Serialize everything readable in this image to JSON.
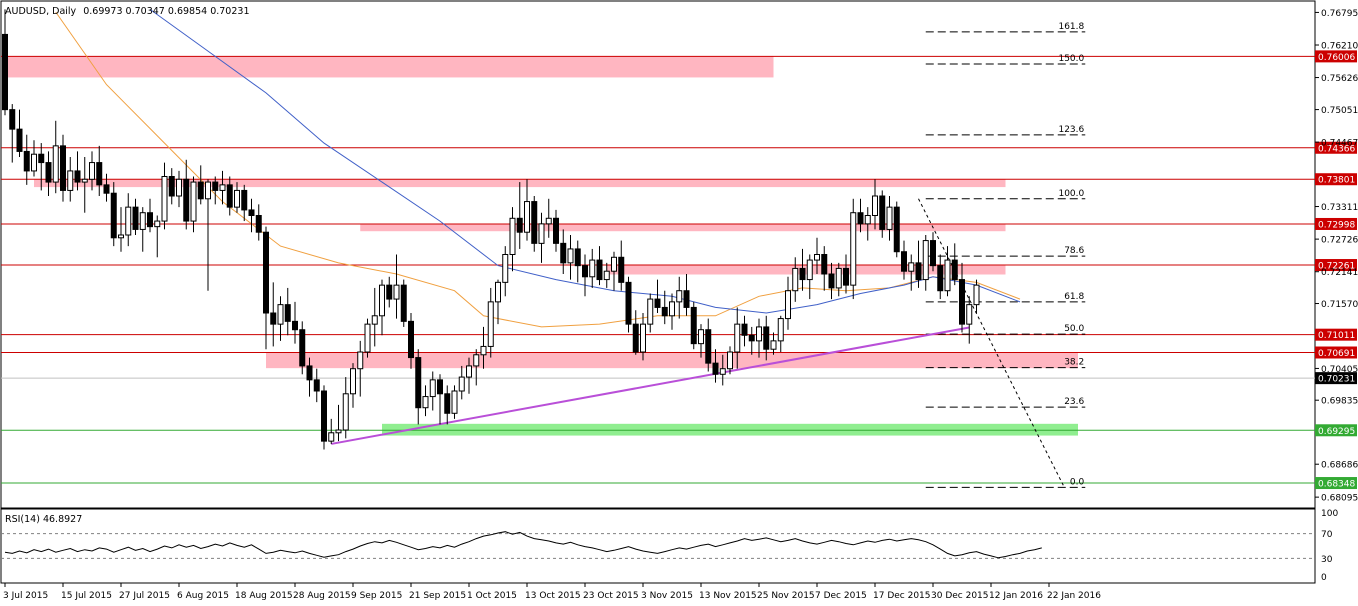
{
  "chart_data": {
    "type": "candlestick",
    "title": {
      "symbol": "AUDUSD",
      "timeframe": "Daily",
      "ohlc_readout": [
        "0.69973",
        "0.70347",
        "0.69854",
        "0.70231"
      ]
    },
    "price_axis": {
      "range": [
        0.679,
        0.77
      ],
      "ticks": [
        "0.76795",
        "0.76210",
        "0.75626",
        "0.75051",
        "0.74467",
        "0.73311",
        "0.72726",
        "0.72141",
        "0.71570",
        "0.70405",
        "0.69835",
        "0.68686",
        "0.68095"
      ]
    },
    "date_axis": {
      "labels": [
        "3 Jul 2015",
        "15 Jul 2015",
        "27 Jul 2015",
        "6 Aug 2015",
        "18 Aug 2015",
        "28 Aug 2015",
        "9 Sep 2015",
        "21 Sep 2015",
        "1 Oct 2015",
        "13 Oct 2015",
        "23 Oct 2015",
        "3 Nov 2015",
        "13 Nov 2015",
        "25 Nov 2015",
        "7 Dec 2015",
        "17 Dec 2015",
        "30 Dec 2015",
        "12 Jan 2016",
        "22 Jan 2016"
      ],
      "label_bar_index": [
        0,
        8,
        16,
        24,
        32,
        40,
        48,
        56,
        64,
        72,
        80,
        88,
        96,
        104,
        112,
        120,
        128,
        136,
        144
      ]
    },
    "horizontal_levels": [
      {
        "price": 0.76006,
        "label": "0.76006",
        "color": "#cc0000"
      },
      {
        "price": 0.74366,
        "label": "0.74366",
        "color": "#cc0000"
      },
      {
        "price": 0.73801,
        "label": "0.73801",
        "color": "#cc0000"
      },
      {
        "price": 0.72998,
        "label": "0.72998",
        "color": "#cc0000"
      },
      {
        "price": 0.72261,
        "label": "0.72261",
        "color": "#cc0000"
      },
      {
        "price": 0.71011,
        "label": "0.71011",
        "color": "#cc0000"
      },
      {
        "price": 0.70691,
        "label": "0.70691",
        "color": "#cc0000"
      },
      {
        "price": 0.70231,
        "label": "0.70231",
        "color": "#000000"
      },
      {
        "price": 0.69295,
        "label": "0.69295",
        "color": "#33aa33"
      },
      {
        "price": 0.68348,
        "label": "0.68348",
        "color": "#33aa33"
      }
    ],
    "zones": [
      {
        "from_bar": 0,
        "to_bar": 106,
        "top": 0.76004,
        "bottom": 0.75628,
        "color": "#ffb6c1"
      },
      {
        "from_bar": 4,
        "to_bar": 138,
        "top": 0.73803,
        "bottom": 0.7366,
        "color": "#ffb6c1"
      },
      {
        "from_bar": 49,
        "to_bar": 138,
        "top": 0.73,
        "bottom": 0.72868,
        "color": "#ffb6c1"
      },
      {
        "from_bar": 83,
        "to_bar": 138,
        "top": 0.72267,
        "bottom": 0.72091,
        "color": "#ffb6c1"
      },
      {
        "from_bar": 36,
        "to_bar": 148,
        "top": 0.70694,
        "bottom": 0.7041,
        "color": "#ffb6c1"
      },
      {
        "from_bar": 52,
        "to_bar": 148,
        "top": 0.69411,
        "bottom": 0.692,
        "color": "#90ee90"
      }
    ],
    "fibonacci": {
      "from_bar": 127,
      "to_bar": 149,
      "levels": [
        {
          "label": "161.8",
          "price": 0.76446
        },
        {
          "label": "150.0",
          "price": 0.7587
        },
        {
          "label": "123.6",
          "price": 0.74596
        },
        {
          "label": "100.0",
          "price": 0.7345
        },
        {
          "label": "78.6",
          "price": 0.7242
        },
        {
          "label": "61.8",
          "price": 0.716
        },
        {
          "label": "50.0",
          "price": 0.7102
        },
        {
          "label": "38.2",
          "price": 0.7042
        },
        {
          "label": "23.6",
          "price": 0.6971
        },
        {
          "label": "0.0",
          "price": 0.6827
        }
      ]
    },
    "trendlines": [
      {
        "from": [
          45,
          0.6905
        ],
        "to": [
          133,
          0.7114
        ],
        "color": "#b94fd8",
        "style": "solid"
      },
      {
        "from": [
          126,
          0.7345
        ],
        "to": [
          146,
          0.683
        ],
        "color": "#000000",
        "style": "dotted"
      }
    ],
    "moving_averages": [
      {
        "color": "#f0a040",
        "points": [
          [
            7,
            0.768
          ],
          [
            14,
            0.755
          ],
          [
            22,
            0.7445
          ],
          [
            30,
            0.734
          ],
          [
            38,
            0.726
          ],
          [
            46,
            0.723
          ],
          [
            54,
            0.721
          ],
          [
            62,
            0.718
          ],
          [
            66,
            0.7135
          ],
          [
            74,
            0.7115
          ],
          [
            82,
            0.712
          ],
          [
            90,
            0.7135
          ],
          [
            98,
            0.7135
          ],
          [
            104,
            0.717
          ],
          [
            110,
            0.7185
          ],
          [
            116,
            0.718
          ],
          [
            122,
            0.7185
          ],
          [
            128,
            0.7205
          ],
          [
            134,
            0.7195
          ],
          [
            140,
            0.7165
          ]
        ]
      },
      {
        "color": "#4060c8",
        "points": [
          [
            20,
            0.7685
          ],
          [
            28,
            0.761
          ],
          [
            36,
            0.7535
          ],
          [
            44,
            0.7445
          ],
          [
            52,
            0.7375
          ],
          [
            60,
            0.7305
          ],
          [
            68,
            0.7225
          ],
          [
            76,
            0.72
          ],
          [
            84,
            0.718
          ],
          [
            92,
            0.717
          ],
          [
            98,
            0.715
          ],
          [
            105,
            0.714
          ],
          [
            112,
            0.7155
          ],
          [
            118,
            0.7175
          ],
          [
            124,
            0.719
          ],
          [
            128,
            0.7205
          ],
          [
            134,
            0.719
          ],
          [
            140,
            0.716
          ]
        ]
      }
    ],
    "candles": [
      [
        0.764,
        0.7685,
        0.7495,
        0.7505
      ],
      [
        0.7505,
        0.7515,
        0.741,
        0.747
      ],
      [
        0.747,
        0.7505,
        0.742,
        0.743
      ],
      [
        0.743,
        0.746,
        0.737,
        0.7395
      ],
      [
        0.7395,
        0.745,
        0.7385,
        0.7425
      ],
      [
        0.7425,
        0.7445,
        0.736,
        0.741
      ],
      [
        0.741,
        0.743,
        0.735,
        0.7375
      ],
      [
        0.7375,
        0.7485,
        0.7355,
        0.744
      ],
      [
        0.744,
        0.746,
        0.734,
        0.736
      ],
      [
        0.736,
        0.742,
        0.734,
        0.7395
      ],
      [
        0.7395,
        0.743,
        0.736,
        0.7375
      ],
      [
        0.7375,
        0.742,
        0.732,
        0.738
      ],
      [
        0.738,
        0.743,
        0.736,
        0.741
      ],
      [
        0.741,
        0.744,
        0.735,
        0.737
      ],
      [
        0.737,
        0.739,
        0.734,
        0.7355
      ],
      [
        0.7355,
        0.7375,
        0.726,
        0.7275
      ],
      [
        0.7275,
        0.733,
        0.725,
        0.728
      ],
      [
        0.728,
        0.7355,
        0.726,
        0.733
      ],
      [
        0.733,
        0.7345,
        0.728,
        0.729
      ],
      [
        0.729,
        0.733,
        0.725,
        0.732
      ],
      [
        0.732,
        0.7345,
        0.7285,
        0.7295
      ],
      [
        0.7295,
        0.7315,
        0.724,
        0.7305
      ],
      [
        0.7305,
        0.741,
        0.729,
        0.7385
      ],
      [
        0.7385,
        0.74,
        0.7335,
        0.735
      ],
      [
        0.735,
        0.7395,
        0.733,
        0.738
      ],
      [
        0.738,
        0.7415,
        0.729,
        0.7305
      ],
      [
        0.7305,
        0.7385,
        0.7285,
        0.7375
      ],
      [
        0.7375,
        0.7405,
        0.7335,
        0.7345
      ],
      [
        0.7345,
        0.738,
        0.718,
        0.7375
      ],
      [
        0.7375,
        0.7385,
        0.7335,
        0.736
      ],
      [
        0.736,
        0.7395,
        0.7335,
        0.737
      ],
      [
        0.737,
        0.7385,
        0.7315,
        0.733
      ],
      [
        0.733,
        0.7375,
        0.732,
        0.736
      ],
      [
        0.736,
        0.737,
        0.7305,
        0.7325
      ],
      [
        0.7325,
        0.7345,
        0.7285,
        0.7315
      ],
      [
        0.7315,
        0.7335,
        0.727,
        0.7285
      ],
      [
        0.7285,
        0.7295,
        0.7075,
        0.714
      ],
      [
        0.714,
        0.7195,
        0.708,
        0.712
      ],
      [
        0.712,
        0.717,
        0.709,
        0.7155
      ],
      [
        0.7155,
        0.7185,
        0.71,
        0.7125
      ],
      [
        0.7125,
        0.716,
        0.7085,
        0.711
      ],
      [
        0.711,
        0.7125,
        0.703,
        0.7045
      ],
      [
        0.7045,
        0.706,
        0.699,
        0.702
      ],
      [
        0.702,
        0.704,
        0.698,
        0.7
      ],
      [
        0.7,
        0.701,
        0.6895,
        0.691
      ],
      [
        0.691,
        0.695,
        0.6905,
        0.6925
      ],
      [
        0.6925,
        0.6975,
        0.691,
        0.693
      ],
      [
        0.693,
        0.7025,
        0.6915,
        0.6995
      ],
      [
        0.6995,
        0.705,
        0.697,
        0.704
      ],
      [
        0.704,
        0.709,
        0.699,
        0.707
      ],
      [
        0.707,
        0.713,
        0.706,
        0.712
      ],
      [
        0.712,
        0.7185,
        0.708,
        0.7135
      ],
      [
        0.7135,
        0.72,
        0.71,
        0.719
      ],
      [
        0.719,
        0.7205,
        0.715,
        0.7165
      ],
      [
        0.7165,
        0.7245,
        0.713,
        0.719
      ],
      [
        0.719,
        0.72,
        0.7115,
        0.7125
      ],
      [
        0.7125,
        0.714,
        0.704,
        0.706
      ],
      [
        0.706,
        0.7075,
        0.694,
        0.697
      ],
      [
        0.697,
        0.701,
        0.6955,
        0.699
      ],
      [
        0.699,
        0.7035,
        0.6965,
        0.702
      ],
      [
        0.702,
        0.703,
        0.694,
        0.6995
      ],
      [
        0.6995,
        0.701,
        0.694,
        0.696
      ],
      [
        0.696,
        0.701,
        0.695,
        0.7
      ],
      [
        0.7,
        0.7045,
        0.6985,
        0.7025
      ],
      [
        0.7025,
        0.706,
        0.6995,
        0.7045
      ],
      [
        0.7045,
        0.7075,
        0.701,
        0.7065
      ],
      [
        0.7065,
        0.7115,
        0.704,
        0.708
      ],
      [
        0.708,
        0.7185,
        0.706,
        0.716
      ],
      [
        0.716,
        0.72,
        0.712,
        0.7195
      ],
      [
        0.7195,
        0.726,
        0.717,
        0.7245
      ],
      [
        0.7245,
        0.733,
        0.7215,
        0.731
      ],
      [
        0.731,
        0.7375,
        0.7255,
        0.7285
      ],
      [
        0.7285,
        0.738,
        0.727,
        0.734
      ],
      [
        0.734,
        0.735,
        0.725,
        0.7265
      ],
      [
        0.7265,
        0.732,
        0.723,
        0.73
      ],
      [
        0.73,
        0.7345,
        0.7275,
        0.731
      ],
      [
        0.731,
        0.7325,
        0.725,
        0.7265
      ],
      [
        0.7265,
        0.729,
        0.721,
        0.723
      ],
      [
        0.723,
        0.728,
        0.72,
        0.7255
      ],
      [
        0.7255,
        0.727,
        0.7195,
        0.7225
      ],
      [
        0.7225,
        0.7245,
        0.717,
        0.7205
      ],
      [
        0.7205,
        0.7255,
        0.7185,
        0.7235
      ],
      [
        0.7235,
        0.726,
        0.719,
        0.72
      ],
      [
        0.72,
        0.723,
        0.7185,
        0.7215
      ],
      [
        0.7215,
        0.725,
        0.718,
        0.724
      ],
      [
        0.724,
        0.727,
        0.718,
        0.7195
      ],
      [
        0.7195,
        0.7205,
        0.7105,
        0.712
      ],
      [
        0.712,
        0.7145,
        0.7065,
        0.707
      ],
      [
        0.707,
        0.714,
        0.7055,
        0.712
      ],
      [
        0.712,
        0.7175,
        0.7105,
        0.7165
      ],
      [
        0.7165,
        0.72,
        0.714,
        0.715
      ],
      [
        0.715,
        0.718,
        0.712,
        0.7135
      ],
      [
        0.7135,
        0.7175,
        0.711,
        0.716
      ],
      [
        0.716,
        0.7205,
        0.713,
        0.718
      ],
      [
        0.718,
        0.721,
        0.7135,
        0.715
      ],
      [
        0.715,
        0.716,
        0.7075,
        0.7085
      ],
      [
        0.7085,
        0.712,
        0.706,
        0.711
      ],
      [
        0.711,
        0.713,
        0.7035,
        0.705
      ],
      [
        0.705,
        0.7075,
        0.7015,
        0.703
      ],
      [
        0.703,
        0.7065,
        0.701,
        0.704
      ],
      [
        0.704,
        0.708,
        0.703,
        0.707
      ],
      [
        0.707,
        0.715,
        0.704,
        0.712
      ],
      [
        0.712,
        0.7135,
        0.708,
        0.71
      ],
      [
        0.71,
        0.7115,
        0.7065,
        0.709
      ],
      [
        0.709,
        0.713,
        0.706,
        0.7115
      ],
      [
        0.7115,
        0.7135,
        0.7055,
        0.7075
      ],
      [
        0.7075,
        0.7105,
        0.7065,
        0.709
      ],
      [
        0.709,
        0.7135,
        0.707,
        0.713
      ],
      [
        0.713,
        0.7205,
        0.711,
        0.718
      ],
      [
        0.718,
        0.724,
        0.716,
        0.722
      ],
      [
        0.722,
        0.7255,
        0.718,
        0.72
      ],
      [
        0.72,
        0.7245,
        0.7165,
        0.7235
      ],
      [
        0.7235,
        0.7275,
        0.721,
        0.7245
      ],
      [
        0.7245,
        0.726,
        0.718,
        0.721
      ],
      [
        0.721,
        0.723,
        0.7165,
        0.7185
      ],
      [
        0.7185,
        0.723,
        0.717,
        0.722
      ],
      [
        0.722,
        0.7245,
        0.7175,
        0.719
      ],
      [
        0.719,
        0.7345,
        0.7165,
        0.732
      ],
      [
        0.732,
        0.7345,
        0.7285,
        0.73
      ],
      [
        0.73,
        0.733,
        0.727,
        0.7315
      ],
      [
        0.7315,
        0.738,
        0.729,
        0.735
      ],
      [
        0.735,
        0.736,
        0.7275,
        0.729
      ],
      [
        0.729,
        0.735,
        0.727,
        0.733
      ],
      [
        0.733,
        0.734,
        0.724,
        0.725
      ],
      [
        0.725,
        0.727,
        0.72,
        0.7215
      ],
      [
        0.7215,
        0.7245,
        0.718,
        0.723
      ],
      [
        0.723,
        0.727,
        0.7185,
        0.72
      ],
      [
        0.72,
        0.728,
        0.718,
        0.727
      ],
      [
        0.727,
        0.7285,
        0.7215,
        0.7225
      ],
      [
        0.7225,
        0.7245,
        0.7165,
        0.718
      ],
      [
        0.718,
        0.726,
        0.717,
        0.7235
      ],
      [
        0.7235,
        0.7265,
        0.719,
        0.72
      ],
      [
        0.72,
        0.723,
        0.7105,
        0.712
      ],
      [
        0.712,
        0.717,
        0.7085,
        0.7155
      ],
      [
        0.7155,
        0.72,
        0.714,
        0.719
      ]
    ],
    "rsi": {
      "label": "RSI(14)",
      "value": "46.8927",
      "axis_ticks": [
        "100",
        "70",
        "30",
        "0"
      ],
      "levels": [
        70,
        30
      ],
      "values": [
        40,
        38,
        42,
        39,
        44,
        41,
        45,
        40,
        43,
        46,
        41,
        44,
        42,
        47,
        45,
        40,
        44,
        48,
        43,
        46,
        41,
        45,
        50,
        47,
        52,
        48,
        51,
        46,
        49,
        53,
        50,
        55,
        51,
        48,
        52,
        45,
        38,
        40,
        43,
        41,
        39,
        42,
        38,
        35,
        32,
        34,
        36,
        41,
        45,
        50,
        54,
        57,
        55,
        59,
        56,
        52,
        48,
        44,
        46,
        49,
        47,
        51,
        48,
        53,
        57,
        62,
        66,
        68,
        71,
        73,
        69,
        72,
        66,
        62,
        60,
        58,
        55,
        53,
        56,
        52,
        49,
        47,
        44,
        41,
        43,
        46,
        49,
        45,
        42,
        40,
        38,
        41,
        44,
        47,
        45,
        48,
        51,
        53,
        49,
        52,
        55,
        58,
        62,
        59,
        61,
        63,
        60,
        57,
        59,
        62,
        58,
        55,
        53,
        56,
        59,
        57,
        54,
        52,
        55,
        58,
        56,
        59,
        61,
        58,
        60,
        62,
        60,
        57,
        52,
        45,
        38,
        34,
        36,
        39,
        41,
        37,
        34,
        31,
        33,
        36,
        38,
        42,
        44,
        46.9
      ]
    }
  }
}
